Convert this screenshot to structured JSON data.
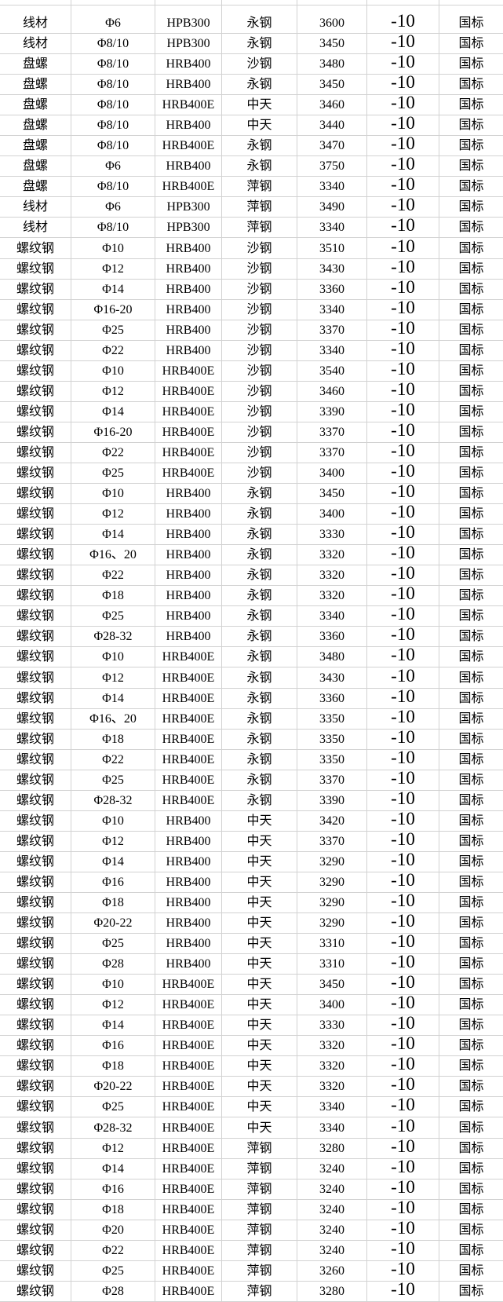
{
  "colors": {
    "grid_line": "#d2d2d2",
    "text": "#000000",
    "background": "#ffffff"
  },
  "table": {
    "rows": [
      [
        "线材",
        "Φ6",
        "HPB300",
        "永钢",
        "3600",
        "-10",
        "国标"
      ],
      [
        "线材",
        "Φ8/10",
        "HPB300",
        "永钢",
        "3450",
        "-10",
        "国标"
      ],
      [
        "盘螺",
        "Φ8/10",
        "HRB400",
        "沙钢",
        "3480",
        "-10",
        "国标"
      ],
      [
        "盘螺",
        "Φ8/10",
        "HRB400",
        "永钢",
        "3450",
        "-10",
        "国标"
      ],
      [
        "盘螺",
        "Φ8/10",
        "HRB400E",
        "中天",
        "3460",
        "-10",
        "国标"
      ],
      [
        "盘螺",
        "Φ8/10",
        "HRB400",
        "中天",
        "3440",
        "-10",
        "国标"
      ],
      [
        "盘螺",
        "Φ8/10",
        "HRB400E",
        "永钢",
        "3470",
        "-10",
        "国标"
      ],
      [
        "盘螺",
        "Φ6",
        "HRB400",
        "永钢",
        "3750",
        "-10",
        "国标"
      ],
      [
        "盘螺",
        "Φ8/10",
        "HRB400E",
        "萍钢",
        "3340",
        "-10",
        "国标"
      ],
      [
        "线材",
        "Φ6",
        "HPB300",
        "萍钢",
        "3490",
        "-10",
        "国标"
      ],
      [
        "线材",
        "Φ8/10",
        "HPB300",
        "萍钢",
        "3340",
        "-10",
        "国标"
      ],
      [
        "螺纹钢",
        "Φ10",
        "HRB400",
        "沙钢",
        "3510",
        "-10",
        "国标"
      ],
      [
        "螺纹钢",
        "Φ12",
        "HRB400",
        "沙钢",
        "3430",
        "-10",
        "国标"
      ],
      [
        "螺纹钢",
        "Φ14",
        "HRB400",
        "沙钢",
        "3360",
        "-10",
        "国标"
      ],
      [
        "螺纹钢",
        "Φ16-20",
        "HRB400",
        "沙钢",
        "3340",
        "-10",
        "国标"
      ],
      [
        "螺纹钢",
        "Φ25",
        "HRB400",
        "沙钢",
        "3370",
        "-10",
        "国标"
      ],
      [
        "螺纹钢",
        "Φ22",
        "HRB400",
        "沙钢",
        "3340",
        "-10",
        "国标"
      ],
      [
        "螺纹钢",
        "Φ10",
        "HRB400E",
        "沙钢",
        "3540",
        "-10",
        "国标"
      ],
      [
        "螺纹钢",
        "Φ12",
        "HRB400E",
        "沙钢",
        "3460",
        "-10",
        "国标"
      ],
      [
        "螺纹钢",
        "Φ14",
        "HRB400E",
        "沙钢",
        "3390",
        "-10",
        "国标"
      ],
      [
        "螺纹钢",
        "Φ16-20",
        "HRB400E",
        "沙钢",
        "3370",
        "-10",
        "国标"
      ],
      [
        "螺纹钢",
        "Φ22",
        "HRB400E",
        "沙钢",
        "3370",
        "-10",
        "国标"
      ],
      [
        "螺纹钢",
        "Φ25",
        "HRB400E",
        "沙钢",
        "3400",
        "-10",
        "国标"
      ],
      [
        "螺纹钢",
        "Φ10",
        "HRB400",
        "永钢",
        "3450",
        "-10",
        "国标"
      ],
      [
        "螺纹钢",
        "Φ12",
        "HRB400",
        "永钢",
        "3400",
        "-10",
        "国标"
      ],
      [
        "螺纹钢",
        "Φ14",
        "HRB400",
        "永钢",
        "3330",
        "-10",
        "国标"
      ],
      [
        "螺纹钢",
        "Φ16、20",
        "HRB400",
        "永钢",
        "3320",
        "-10",
        "国标"
      ],
      [
        "螺纹钢",
        "Φ22",
        "HRB400",
        "永钢",
        "3320",
        "-10",
        "国标"
      ],
      [
        "螺纹钢",
        "Φ18",
        "HRB400",
        "永钢",
        "3320",
        "-10",
        "国标"
      ],
      [
        "螺纹钢",
        "Φ25",
        "HRB400",
        "永钢",
        "3340",
        "-10",
        "国标"
      ],
      [
        "螺纹钢",
        "Φ28-32",
        "HRB400",
        "永钢",
        "3360",
        "-10",
        "国标"
      ],
      [
        "螺纹钢",
        "Φ10",
        "HRB400E",
        "永钢",
        "3480",
        "-10",
        "国标"
      ],
      [
        "螺纹钢",
        "Φ12",
        "HRB400E",
        "永钢",
        "3430",
        "-10",
        "国标"
      ],
      [
        "螺纹钢",
        "Φ14",
        "HRB400E",
        "永钢",
        "3360",
        "-10",
        "国标"
      ],
      [
        "螺纹钢",
        "Φ16、20",
        "HRB400E",
        "永钢",
        "3350",
        "-10",
        "国标"
      ],
      [
        "螺纹钢",
        "Φ18",
        "HRB400E",
        "永钢",
        "3350",
        "-10",
        "国标"
      ],
      [
        "螺纹钢",
        "Φ22",
        "HRB400E",
        "永钢",
        "3350",
        "-10",
        "国标"
      ],
      [
        "螺纹钢",
        "Φ25",
        "HRB400E",
        "永钢",
        "3370",
        "-10",
        "国标"
      ],
      [
        "螺纹钢",
        "Φ28-32",
        "HRB400E",
        "永钢",
        "3390",
        "-10",
        "国标"
      ],
      [
        "螺纹钢",
        "Φ10",
        "HRB400",
        "中天",
        "3420",
        "-10",
        "国标"
      ],
      [
        "螺纹钢",
        "Φ12",
        "HRB400",
        "中天",
        "3370",
        "-10",
        "国标"
      ],
      [
        "螺纹钢",
        "Φ14",
        "HRB400",
        "中天",
        "3290",
        "-10",
        "国标"
      ],
      [
        "螺纹钢",
        "Φ16",
        "HRB400",
        "中天",
        "3290",
        "-10",
        "国标"
      ],
      [
        "螺纹钢",
        "Φ18",
        "HRB400",
        "中天",
        "3290",
        "-10",
        "国标"
      ],
      [
        "螺纹钢",
        "Φ20-22",
        "HRB400",
        "中天",
        "3290",
        "-10",
        "国标"
      ],
      [
        "螺纹钢",
        "Φ25",
        "HRB400",
        "中天",
        "3310",
        "-10",
        "国标"
      ],
      [
        "螺纹钢",
        "Φ28",
        "HRB400",
        "中天",
        "3310",
        "-10",
        "国标"
      ],
      [
        "螺纹钢",
        "Φ10",
        "HRB400E",
        "中天",
        "3450",
        "-10",
        "国标"
      ],
      [
        "螺纹钢",
        "Φ12",
        "HRB400E",
        "中天",
        "3400",
        "-10",
        "国标"
      ],
      [
        "螺纹钢",
        "Φ14",
        "HRB400E",
        "中天",
        "3330",
        "-10",
        "国标"
      ],
      [
        "螺纹钢",
        "Φ16",
        "HRB400E",
        "中天",
        "3320",
        "-10",
        "国标"
      ],
      [
        "螺纹钢",
        "Φ18",
        "HRB400E",
        "中天",
        "3320",
        "-10",
        "国标"
      ],
      [
        "螺纹钢",
        "Φ20-22",
        "HRB400E",
        "中天",
        "3320",
        "-10",
        "国标"
      ],
      [
        "螺纹钢",
        "Φ25",
        "HRB400E",
        "中天",
        "3340",
        "-10",
        "国标"
      ],
      [
        "螺纹钢",
        "Φ28-32",
        "HRB400E",
        "中天",
        "3340",
        "-10",
        "国标"
      ],
      [
        "螺纹钢",
        "Φ12",
        "HRB400E",
        "萍钢",
        "3280",
        "-10",
        "国标"
      ],
      [
        "螺纹钢",
        "Φ14",
        "HRB400E",
        "萍钢",
        "3240",
        "-10",
        "国标"
      ],
      [
        "螺纹钢",
        "Φ16",
        "HRB400E",
        "萍钢",
        "3240",
        "-10",
        "国标"
      ],
      [
        "螺纹钢",
        "Φ18",
        "HRB400E",
        "萍钢",
        "3240",
        "-10",
        "国标"
      ],
      [
        "螺纹钢",
        "Φ20",
        "HRB400E",
        "萍钢",
        "3240",
        "-10",
        "国标"
      ],
      [
        "螺纹钢",
        "Φ22",
        "HRB400E",
        "萍钢",
        "3240",
        "-10",
        "国标"
      ],
      [
        "螺纹钢",
        "Φ25",
        "HRB400E",
        "萍钢",
        "3260",
        "-10",
        "国标"
      ],
      [
        "螺纹钢",
        "Φ28",
        "HRB400E",
        "萍钢",
        "3280",
        "-10",
        "国标"
      ]
    ]
  }
}
